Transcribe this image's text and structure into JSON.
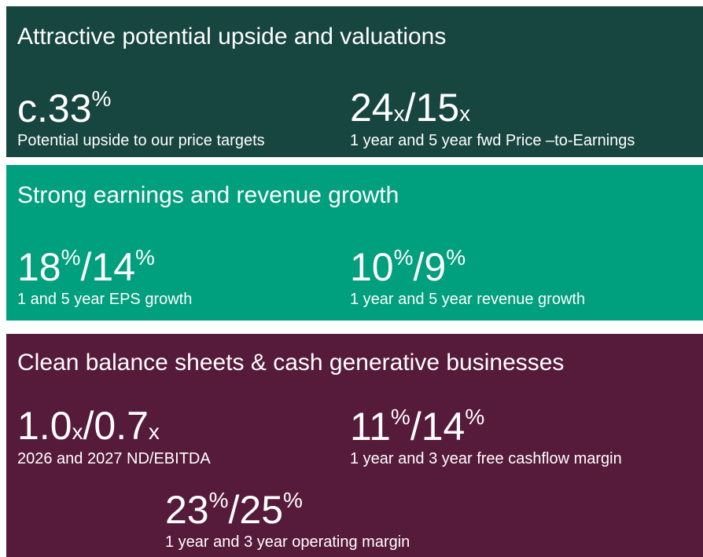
{
  "panels": [
    {
      "title": "Attractive potential upside and valuations",
      "metrics": [
        {
          "figure": [
            "c.33",
            "%"
          ],
          "caption": "Potential upside to our price targets"
        },
        {
          "figure": [
            "24",
            "x",
            "/15",
            "x"
          ],
          "caption": "1 year and 5 year fwd Price –to-Earnings"
        }
      ]
    },
    {
      "title": "Strong earnings and revenue growth",
      "metrics": [
        {
          "figure": [
            "18",
            "%",
            "/14",
            "%"
          ],
          "caption": "1 and 5 year EPS growth"
        },
        {
          "figure": [
            "10",
            "%",
            "/9",
            "%"
          ],
          "caption": "1 year and 5 year revenue growth"
        }
      ]
    },
    {
      "title": "Clean balance sheets & cash generative businesses",
      "metrics": [
        {
          "figure": [
            "1.0",
            "x",
            "/0.7",
            "x"
          ],
          "caption": "2026 and 2027 ND/EBITDA"
        },
        {
          "figure": [
            "11",
            "%",
            "/14",
            "%"
          ],
          "caption": "1 year and 3 year free cashflow margin"
        },
        {
          "figure": [
            "23",
            "%",
            "/25",
            "%"
          ],
          "caption": "1 year and 3 year operating margin"
        }
      ]
    }
  ]
}
